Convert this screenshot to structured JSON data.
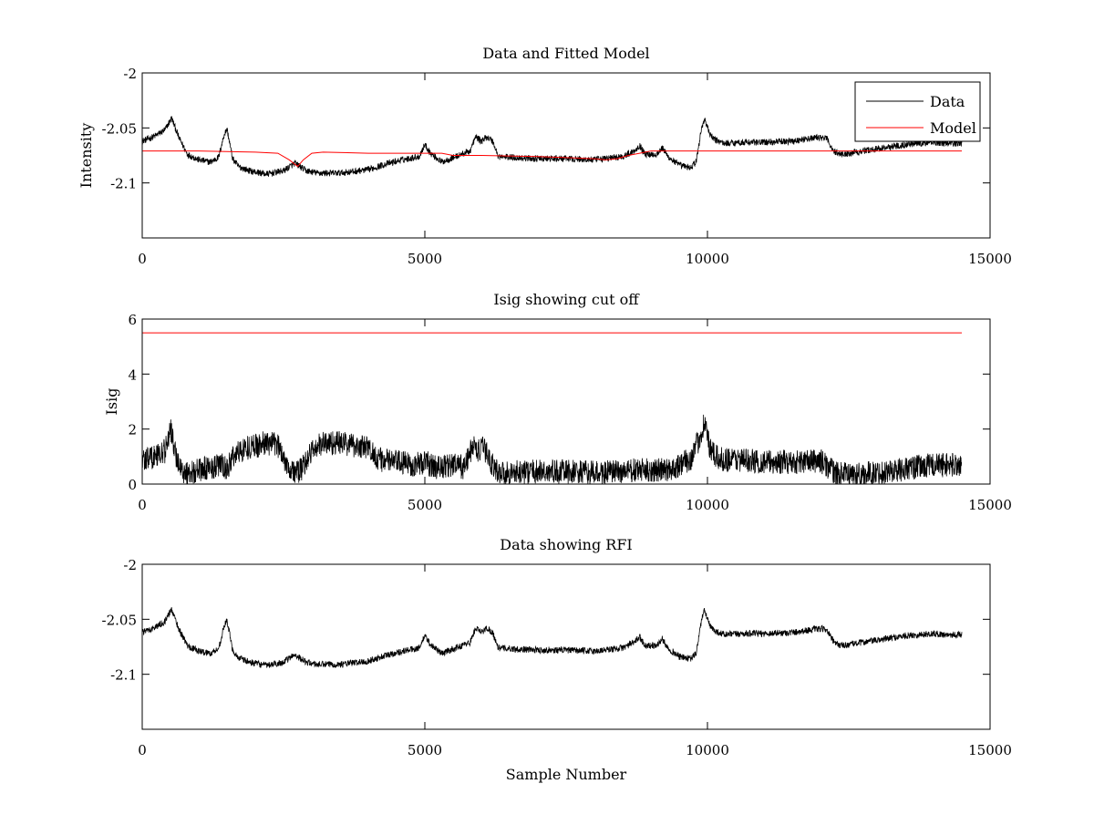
{
  "figure": {
    "background": "#ffffff",
    "data_color": "#000000",
    "model_color": "#ff0000"
  },
  "chart_data": [
    {
      "type": "line",
      "title": "Data and Fitted Model",
      "xlabel": "",
      "ylabel": "Intensity",
      "xlim": [
        0,
        15000
      ],
      "ylim": [
        -2.15,
        -2.0
      ],
      "xticks": [
        0,
        5000,
        10000,
        15000
      ],
      "xtick_labels": [
        "0",
        "5000",
        "10000",
        "15000"
      ],
      "yticks": [
        -2.0,
        -2.05,
        -2.1
      ],
      "ytick_labels": [
        "-2",
        "-2.05",
        "-2.1"
      ],
      "grid": false,
      "legend": {
        "position": "top-right",
        "entries": [
          {
            "label": "Data",
            "color": "#000000"
          },
          {
            "label": "Model",
            "color": "#ff0000"
          }
        ]
      },
      "series": [
        {
          "name": "Data",
          "color": "#000000",
          "noise": 0.003,
          "x": [
            0,
            200,
            400,
            520,
            650,
            800,
            1000,
            1200,
            1350,
            1450,
            1500,
            1600,
            1700,
            1900,
            2200,
            2500,
            2700,
            2900,
            3100,
            3500,
            4000,
            4300,
            4600,
            4900,
            5000,
            5100,
            5300,
            5600,
            5800,
            5900,
            6000,
            6100,
            6200,
            6300,
            6600,
            7000,
            7500,
            8000,
            8500,
            8700,
            8800,
            8900,
            9100,
            9200,
            9300,
            9500,
            9700,
            9800,
            9900,
            9950,
            10050,
            10150,
            10300,
            10600,
            11000,
            11500,
            11900,
            12100,
            12250,
            12400,
            12600,
            13000,
            13500,
            14000,
            14200,
            14500
          ],
          "y": [
            -2.062,
            -2.058,
            -2.052,
            -2.041,
            -2.059,
            -2.074,
            -2.079,
            -2.081,
            -2.077,
            -2.056,
            -2.051,
            -2.078,
            -2.085,
            -2.089,
            -2.092,
            -2.089,
            -2.082,
            -2.089,
            -2.091,
            -2.091,
            -2.088,
            -2.083,
            -2.079,
            -2.076,
            -2.065,
            -2.073,
            -2.081,
            -2.075,
            -2.071,
            -2.058,
            -2.062,
            -2.058,
            -2.062,
            -2.076,
            -2.077,
            -2.078,
            -2.078,
            -2.079,
            -2.076,
            -2.071,
            -2.066,
            -2.074,
            -2.074,
            -2.068,
            -2.076,
            -2.084,
            -2.086,
            -2.081,
            -2.049,
            -2.042,
            -2.057,
            -2.061,
            -2.064,
            -2.063,
            -2.063,
            -2.062,
            -2.059,
            -2.059,
            -2.072,
            -2.074,
            -2.072,
            -2.069,
            -2.065,
            -2.063,
            -2.064,
            -2.064
          ]
        },
        {
          "name": "Model",
          "color": "#ff0000",
          "noise": 0,
          "x": [
            0,
            1000,
            2000,
            2400,
            2600,
            2750,
            2850,
            3000,
            3200,
            4000,
            5000,
            5300,
            5500,
            6000,
            7000,
            7500,
            8000,
            8200,
            8400,
            8600,
            8800,
            9000,
            9500,
            10000,
            11000,
            12000,
            13000,
            14000,
            14500
          ],
          "y": [
            -2.071,
            -2.071,
            -2.072,
            -2.073,
            -2.079,
            -2.085,
            -2.079,
            -2.073,
            -2.072,
            -2.073,
            -2.073,
            -2.073,
            -2.075,
            -2.075,
            -2.076,
            -2.077,
            -2.078,
            -2.079,
            -2.078,
            -2.075,
            -2.073,
            -2.071,
            -2.071,
            -2.071,
            -2.071,
            -2.071,
            -2.071,
            -2.071,
            -2.071
          ]
        }
      ]
    },
    {
      "type": "line",
      "title": "Isig showing cut off",
      "xlabel": "",
      "ylabel": "Isig",
      "xlim": [
        0,
        15000
      ],
      "ylim": [
        0,
        6
      ],
      "xticks": [
        0,
        5000,
        10000,
        15000
      ],
      "xtick_labels": [
        "0",
        "5000",
        "10000",
        "15000"
      ],
      "yticks": [
        0,
        2,
        4,
        6
      ],
      "ytick_labels": [
        "0",
        "2",
        "4",
        "6"
      ],
      "grid": false,
      "series": [
        {
          "color": "#000000",
          "noise": 0.45,
          "x": [
            0,
            200,
            400,
            500,
            600,
            700,
            800,
            1000,
            1200,
            1400,
            1500,
            1600,
            1800,
            2000,
            2200,
            2400,
            2600,
            2700,
            2800,
            3000,
            3200,
            3500,
            3800,
            4000,
            4200,
            4500,
            4800,
            5000,
            5200,
            5500,
            5700,
            5850,
            5950,
            6050,
            6150,
            6250,
            6400,
            7000,
            7500,
            8000,
            8500,
            8800,
            9000,
            9300,
            9500,
            9700,
            9850,
            9950,
            10050,
            10200,
            10500,
            11000,
            11500,
            12000,
            12150,
            12300,
            12600,
            13000,
            13500,
            14000,
            14500
          ],
          "y": [
            0.9,
            1.0,
            1.2,
            2.0,
            1.0,
            0.5,
            0.4,
            0.5,
            0.6,
            0.7,
            0.5,
            1.0,
            1.3,
            1.4,
            1.5,
            1.4,
            0.6,
            0.4,
            0.5,
            1.2,
            1.5,
            1.5,
            1.4,
            1.3,
            0.9,
            0.8,
            0.7,
            0.8,
            0.6,
            0.7,
            0.6,
            1.4,
            1.2,
            1.3,
            0.9,
            0.5,
            0.4,
            0.45,
            0.45,
            0.4,
            0.45,
            0.5,
            0.5,
            0.5,
            0.7,
            0.9,
            1.6,
            2.3,
            1.2,
            0.9,
            0.9,
            0.8,
            0.8,
            0.85,
            0.6,
            0.35,
            0.35,
            0.4,
            0.55,
            0.7,
            0.7
          ]
        },
        {
          "color": "#ff0000",
          "noise": 0,
          "x": [
            0,
            14500
          ],
          "y": [
            5.5,
            5.5
          ]
        }
      ]
    },
    {
      "type": "line",
      "title": "Data showing RFI",
      "xlabel": "Sample Number",
      "ylabel": "",
      "xlim": [
        0,
        15000
      ],
      "ylim": [
        -2.15,
        -2.0
      ],
      "xticks": [
        0,
        5000,
        10000,
        15000
      ],
      "xtick_labels": [
        "0",
        "5000",
        "10000",
        "15000"
      ],
      "yticks": [
        -2.0,
        -2.05,
        -2.1
      ],
      "ytick_labels": [
        "-2",
        "-2.05",
        "-2.1"
      ],
      "grid": false,
      "series": [
        {
          "color": "#000000",
          "noise": 0.003,
          "x": [
            0,
            200,
            400,
            520,
            650,
            800,
            1000,
            1200,
            1350,
            1450,
            1500,
            1600,
            1700,
            1900,
            2200,
            2500,
            2700,
            2900,
            3100,
            3500,
            4000,
            4300,
            4600,
            4900,
            5000,
            5100,
            5300,
            5600,
            5800,
            5900,
            6000,
            6100,
            6200,
            6300,
            6600,
            7000,
            7500,
            8000,
            8500,
            8700,
            8800,
            8900,
            9100,
            9200,
            9300,
            9500,
            9700,
            9800,
            9900,
            9950,
            10050,
            10150,
            10300,
            10600,
            11000,
            11500,
            11900,
            12100,
            12250,
            12400,
            12600,
            13000,
            13500,
            14000,
            14200,
            14500
          ],
          "y": [
            -2.062,
            -2.058,
            -2.052,
            -2.041,
            -2.059,
            -2.074,
            -2.079,
            -2.081,
            -2.077,
            -2.056,
            -2.051,
            -2.078,
            -2.085,
            -2.089,
            -2.092,
            -2.089,
            -2.082,
            -2.089,
            -2.091,
            -2.091,
            -2.088,
            -2.083,
            -2.079,
            -2.076,
            -2.065,
            -2.073,
            -2.081,
            -2.075,
            -2.071,
            -2.058,
            -2.062,
            -2.058,
            -2.062,
            -2.076,
            -2.077,
            -2.078,
            -2.078,
            -2.079,
            -2.076,
            -2.071,
            -2.066,
            -2.074,
            -2.074,
            -2.068,
            -2.076,
            -2.084,
            -2.086,
            -2.081,
            -2.049,
            -2.042,
            -2.057,
            -2.061,
            -2.064,
            -2.063,
            -2.063,
            -2.062,
            -2.059,
            -2.059,
            -2.072,
            -2.074,
            -2.072,
            -2.069,
            -2.065,
            -2.063,
            -2.064,
            -2.064
          ]
        }
      ]
    }
  ]
}
